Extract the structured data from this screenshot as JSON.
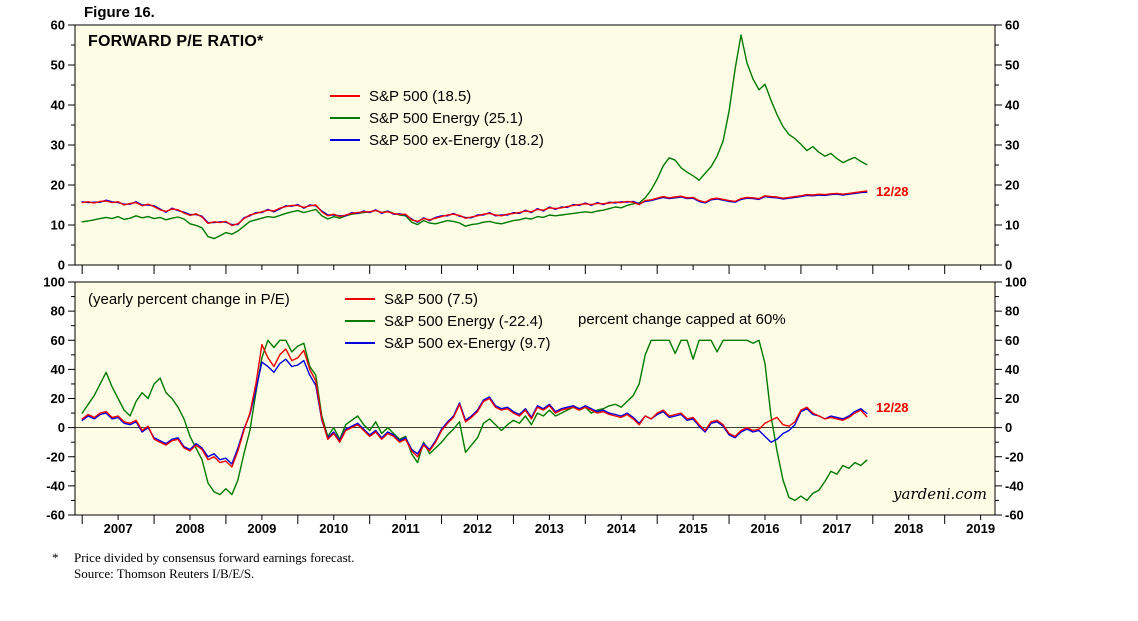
{
  "figure": {
    "label": "Figure 16."
  },
  "watermark": "yardeni.com",
  "footnotes": {
    "star": "*",
    "line1": "Price divided by consensus forward earnings forecast.",
    "line2": "Source: Thomson Reuters I/B/E/S."
  },
  "colors": {
    "plot_bg": "#FDFDE6",
    "border": "#000000",
    "red": "#EE0000",
    "green": "#007A00",
    "blue": "#0000DD"
  },
  "chart_data": [
    {
      "type": "line",
      "title": "FORWARD P/E RATIO*",
      "end_label": "12/28",
      "x_start": 2007.0,
      "x_step": 0.0833333,
      "xlim": [
        2006.9,
        2019.7
      ],
      "ylim": [
        0,
        60
      ],
      "ytick": 10,
      "ytick_minor": 5,
      "grid": false,
      "legend_position": "upper-center-left",
      "years": [
        2007,
        2008,
        2009,
        2010,
        2011,
        2012,
        2013,
        2014,
        2015,
        2016,
        2017,
        2018,
        2019
      ],
      "series": [
        {
          "name": "S&P 500",
          "legend": "S&P 500 (18.5)",
          "latest": 18.5,
          "color": "#EE0000",
          "values": [
            15.6,
            15.8,
            15.5,
            15.9,
            16.0,
            15.6,
            15.8,
            15.0,
            15.4,
            15.6,
            14.8,
            15.2,
            14.6,
            13.8,
            13.4,
            14.0,
            13.8,
            13.0,
            12.4,
            12.8,
            12.0,
            10.4,
            10.8,
            10.6,
            10.9,
            9.9,
            10.3,
            11.6,
            12.5,
            12.9,
            13.3,
            13.7,
            13.5,
            14.2,
            14.6,
            14.9,
            14.9,
            14.4,
            14.8,
            15.0,
            13.3,
            12.3,
            12.7,
            12.1,
            12.5,
            12.9,
            13.1,
            13.3,
            13.3,
            13.6,
            13.1,
            13.3,
            12.9,
            12.6,
            12.7,
            11.3,
            10.9,
            11.6,
            11.3,
            11.7,
            12.1,
            12.5,
            12.7,
            12.4,
            11.7,
            12.0,
            12.3,
            12.7,
            12.9,
            12.5,
            12.3,
            12.7,
            12.9,
            13.1,
            13.5,
            13.3,
            13.9,
            13.7,
            14.3,
            14.1,
            14.3,
            14.6,
            14.9,
            15.1,
            15.3,
            15.1,
            15.4,
            15.3,
            15.5,
            15.7,
            15.6,
            15.9,
            15.7,
            15.1,
            16.1,
            16.3,
            16.7,
            17.1,
            16.8,
            17.0,
            17.2,
            16.8,
            16.9,
            16.1,
            15.7,
            16.5,
            16.7,
            16.4,
            16.1,
            15.9,
            16.6,
            16.9,
            16.8,
            16.6,
            17.3,
            17.1,
            17.0,
            16.7,
            16.9,
            17.1,
            17.3,
            17.6,
            17.5,
            17.7,
            17.6,
            17.8,
            17.9,
            17.7,
            17.9,
            18.1,
            18.3,
            18.5
          ]
        },
        {
          "name": "S&P 500 Energy",
          "legend": "S&P 500 Energy (25.1)",
          "latest": 25.1,
          "color": "#007A00",
          "values": [
            10.8,
            11.0,
            11.3,
            11.6,
            11.9,
            11.6,
            12.1,
            11.4,
            11.7,
            12.3,
            11.8,
            12.1,
            11.6,
            11.9,
            11.3,
            11.7,
            12.0,
            11.5,
            10.3,
            9.9,
            9.3,
            7.1,
            6.6,
            7.3,
            8.1,
            7.7,
            8.5,
            9.7,
            10.9,
            11.3,
            11.7,
            12.1,
            11.9,
            12.4,
            12.9,
            13.3,
            13.6,
            13.1,
            13.5,
            13.9,
            12.3,
            11.5,
            12.1,
            11.7,
            12.3,
            12.7,
            12.9,
            13.1,
            13.3,
            13.7,
            13.1,
            13.5,
            12.9,
            12.5,
            12.3,
            10.7,
            10.1,
            11.1,
            10.5,
            10.3,
            10.7,
            11.1,
            10.9,
            10.5,
            9.7,
            10.1,
            10.3,
            10.7,
            10.9,
            10.5,
            10.3,
            10.7,
            11.1,
            11.3,
            11.7,
            11.5,
            12.1,
            11.9,
            12.5,
            12.3,
            12.5,
            12.7,
            12.9,
            13.1,
            13.3,
            13.1,
            13.5,
            13.7,
            14.1,
            14.5,
            14.3,
            14.9,
            15.3,
            15.5,
            16.8,
            18.8,
            21.5,
            24.8,
            26.8,
            26.2,
            24.3,
            23.2,
            22.3,
            21.2,
            22.9,
            24.6,
            27.2,
            31.0,
            38.5,
            49.0,
            57.5,
            50.5,
            46.5,
            43.8,
            45.2,
            41.2,
            37.6,
            34.6,
            32.6,
            31.6,
            30.2,
            28.6,
            29.6,
            28.2,
            27.2,
            27.9,
            26.6,
            25.6,
            26.3,
            26.9,
            25.9,
            25.1
          ]
        },
        {
          "name": "S&P 500 ex-Energy",
          "legend": "S&P 500 ex-Energy (18.2)",
          "latest": 18.2,
          "color": "#0000DD",
          "values": [
            15.8,
            15.6,
            15.7,
            15.7,
            16.2,
            15.8,
            15.6,
            15.2,
            15.2,
            15.8,
            15.0,
            15.0,
            14.8,
            14.0,
            13.2,
            14.2,
            13.6,
            13.2,
            12.6,
            12.6,
            12.2,
            10.6,
            10.6,
            10.8,
            10.7,
            10.1,
            10.1,
            11.8,
            12.3,
            13.1,
            13.1,
            13.9,
            13.3,
            14.0,
            14.8,
            14.7,
            15.1,
            14.2,
            15.0,
            14.8,
            13.5,
            12.5,
            12.5,
            12.3,
            12.3,
            13.1,
            12.9,
            13.5,
            13.1,
            13.8,
            12.9,
            13.5,
            12.7,
            12.8,
            12.5,
            11.5,
            10.7,
            11.8,
            11.1,
            11.9,
            12.3,
            12.3,
            12.9,
            12.2,
            11.9,
            11.8,
            12.5,
            12.5,
            13.1,
            12.3,
            12.5,
            12.5,
            13.1,
            12.9,
            13.7,
            13.1,
            14.1,
            13.5,
            14.5,
            13.9,
            14.5,
            14.4,
            15.1,
            14.9,
            15.5,
            14.9,
            15.6,
            15.1,
            15.7,
            15.5,
            15.8,
            15.7,
            15.9,
            15.3,
            15.9,
            16.1,
            16.5,
            16.9,
            16.6,
            16.8,
            17.0,
            16.6,
            16.7,
            15.9,
            15.5,
            16.3,
            16.5,
            16.2,
            15.9,
            15.7,
            16.4,
            16.7,
            16.6,
            16.4,
            17.1,
            16.9,
            16.8,
            16.5,
            16.7,
            16.9,
            17.1,
            17.4,
            17.3,
            17.5,
            17.4,
            17.6,
            17.7,
            17.5,
            17.7,
            17.9,
            18.1,
            18.2
          ]
        }
      ]
    },
    {
      "type": "line",
      "subtitle": "(yearly percent change in P/E)",
      "note": "percent change capped at 60%",
      "end_label": "12/28",
      "x_start": 2007.0,
      "x_step": 0.0833333,
      "xlim": [
        2006.9,
        2019.7
      ],
      "ylim": [
        -60,
        100
      ],
      "ytick": 20,
      "ytick_minor": 10,
      "grid": false,
      "zero_line": true,
      "legend_position": "upper-center-left",
      "years": [
        2007,
        2008,
        2009,
        2010,
        2011,
        2012,
        2013,
        2014,
        2015,
        2016,
        2017,
        2018,
        2019
      ],
      "series": [
        {
          "name": "S&P 500",
          "legend": "S&P 500 (7.5)",
          "latest": 7.5,
          "color": "#EE0000",
          "values": [
            6,
            9,
            7,
            10,
            11,
            7,
            8,
            4,
            3,
            5,
            -2,
            1,
            -8,
            -10,
            -12,
            -9,
            -8,
            -14,
            -16,
            -12,
            -15,
            -22,
            -20,
            -24,
            -23,
            -27,
            -16,
            -2,
            10,
            30,
            57,
            48,
            42,
            50,
            54,
            46,
            48,
            53,
            40,
            32,
            6,
            -8,
            -4,
            -10,
            -2,
            0,
            2,
            -2,
            -6,
            -3,
            -8,
            -4,
            -6,
            -10,
            -8,
            -16,
            -20,
            -12,
            -16,
            -10,
            -2,
            3,
            7,
            16,
            4,
            7,
            11,
            18,
            20,
            14,
            12,
            13,
            10,
            8,
            12,
            6,
            14,
            12,
            15,
            10,
            12,
            13,
            14,
            12,
            14,
            12,
            10,
            11,
            9,
            8,
            7,
            9,
            6,
            2,
            8,
            6,
            10,
            12,
            8,
            9,
            10,
            6,
            7,
            2,
            -2,
            4,
            5,
            2,
            -4,
            -6,
            -2,
            0,
            -2,
            -1,
            3,
            5,
            7,
            2,
            1,
            4,
            12,
            14,
            10,
            8,
            6,
            7,
            6,
            5,
            7,
            10,
            12,
            7.5
          ]
        },
        {
          "name": "S&P 500 Energy",
          "legend": "S&P 500 Energy (-22.4)",
          "latest": -22.4,
          "color": "#007A00",
          "values": [
            10,
            16,
            22,
            30,
            38,
            28,
            20,
            12,
            8,
            18,
            24,
            20,
            30,
            34,
            24,
            20,
            14,
            6,
            -6,
            -14,
            -22,
            -38,
            -44,
            -46,
            -42,
            -46,
            -36,
            -18,
            -2,
            24,
            48,
            60,
            55,
            60,
            60,
            52,
            56,
            58,
            42,
            36,
            8,
            -6,
            0,
            -8,
            2,
            5,
            8,
            2,
            -2,
            4,
            -4,
            0,
            -4,
            -8,
            -6,
            -18,
            -24,
            -10,
            -18,
            -14,
            -10,
            -5,
            -1,
            4,
            -17,
            -12,
            -7,
            3,
            6,
            2,
            -2,
            2,
            5,
            3,
            8,
            2,
            10,
            8,
            12,
            8,
            10,
            12,
            14,
            12,
            14,
            10,
            12,
            13,
            15,
            16,
            14,
            18,
            22,
            30,
            50,
            60,
            60,
            60,
            60,
            51,
            60,
            60,
            47,
            60,
            60,
            60,
            52,
            60,
            60,
            60,
            60,
            60,
            58,
            60,
            44,
            8,
            -16,
            -36,
            -48,
            -50,
            -47,
            -50,
            -45,
            -43,
            -37,
            -30,
            -32,
            -26,
            -28,
            -24,
            -26,
            -22.4
          ]
        },
        {
          "name": "S&P 500 ex-Energy",
          "legend": "S&P 500 ex-Energy (9.7)",
          "latest": 9.7,
          "color": "#0000DD",
          "values": [
            5,
            8,
            6,
            9,
            10,
            6,
            7,
            3,
            2,
            4,
            -3,
            0,
            -7,
            -9,
            -11,
            -8,
            -7,
            -13,
            -15,
            -11,
            -14,
            -20,
            -18,
            -22,
            -21,
            -25,
            -14,
            -1,
            9,
            26,
            45,
            42,
            38,
            44,
            47,
            42,
            43,
            46,
            36,
            29,
            5,
            -7,
            -3,
            -9,
            -1,
            1,
            3,
            -1,
            -5,
            -2,
            -7,
            -3,
            -5,
            -9,
            -7,
            -15,
            -18,
            -11,
            -15,
            -9,
            -1,
            4,
            8,
            17,
            5,
            8,
            12,
            19,
            21,
            15,
            13,
            14,
            11,
            9,
            13,
            7,
            15,
            13,
            16,
            11,
            13,
            14,
            15,
            13,
            15,
            13,
            11,
            12,
            10,
            9,
            8,
            10,
            7,
            3,
            8,
            6,
            9,
            11,
            7,
            8,
            9,
            5,
            6,
            1,
            -3,
            3,
            4,
            1,
            -5,
            -7,
            -3,
            -1,
            -3,
            -2,
            -6,
            -10,
            -8,
            -4,
            -2,
            2,
            11,
            13,
            9,
            8,
            6,
            8,
            7,
            6,
            8,
            11,
            13,
            9.7
          ]
        }
      ]
    }
  ]
}
